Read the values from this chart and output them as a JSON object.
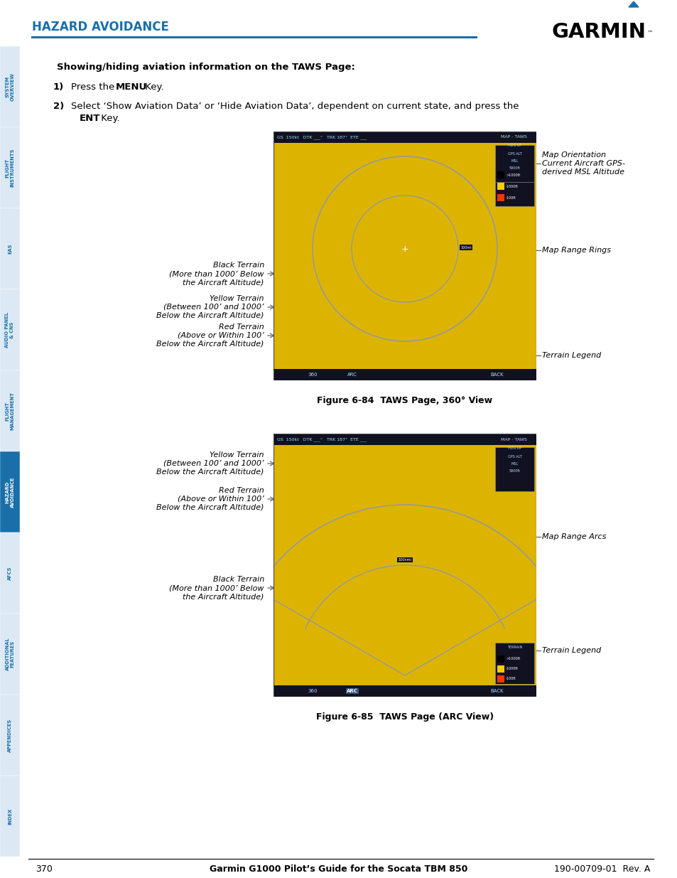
{
  "page_bg": "#ffffff",
  "header_title": "HAZARD AVOIDANCE",
  "header_title_color": "#1a6fa8",
  "header_line_color": "#1a6fa8",
  "garmin_text": "GARMIN",
  "section_heading": "Showing/hiding aviation information on the TAWS Page:",
  "fig1_caption": "Figure 6-84  TAWS Page, 360° View",
  "fig2_caption": "Figure 6-85  TAWS Page (ARC View)",
  "sidebar_labels": [
    "SYSTEM\nOVERVIEW",
    "FLIGHT\nINSTRUMENTS",
    "EAS",
    "AUDIO PANEL\n& CNS",
    "FLIGHT\nMANAGEMENT",
    "HAZARD\nAVOIDANCE",
    "AFCS",
    "ADDITIONAL\nFEATURES",
    "APPENDICES",
    "INDEX"
  ],
  "sidebar_colors": [
    "#dce9f5",
    "#dce9f5",
    "#dce9f5",
    "#dce9f5",
    "#dce9f5",
    "#1a6fa8",
    "#dce9f5",
    "#dce9f5",
    "#dce9f5",
    "#dce9f5"
  ],
  "sidebar_text_colors": [
    "#1a6fa8",
    "#1a6fa8",
    "#1a6fa8",
    "#1a6fa8",
    "#1a6fa8",
    "#ffffff",
    "#1a6fa8",
    "#1a6fa8",
    "#1a6fa8",
    "#1a6fa8"
  ],
  "footer_page": "370",
  "footer_center": "Garmin G1000 Pilot’s Guide for the Socata TBM 850",
  "footer_right": "190-00709-01  Rev. A"
}
